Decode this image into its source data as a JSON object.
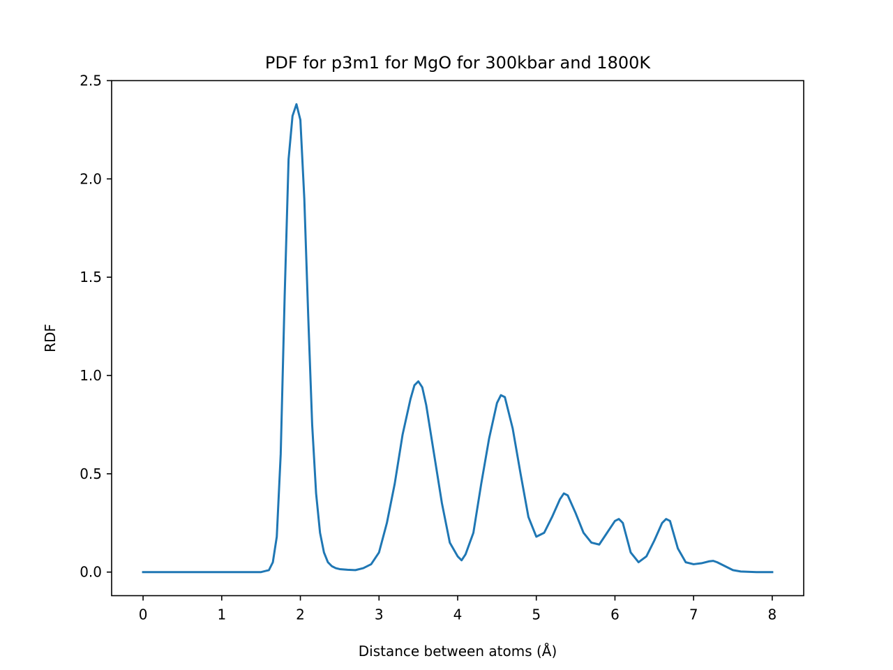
{
  "chart_data": {
    "type": "line",
    "title": "PDF for p3m1 for MgO for 300kbar and 1800K",
    "xlabel": "Distance between atoms (Å)",
    "ylabel": "RDF",
    "xlim": [
      -0.4,
      8.4
    ],
    "ylim": [
      -0.12,
      2.5
    ],
    "xticks": [
      0,
      1,
      2,
      3,
      4,
      5,
      6,
      7,
      8
    ],
    "xtick_labels": [
      "0",
      "1",
      "2",
      "3",
      "4",
      "5",
      "6",
      "7",
      "8"
    ],
    "yticks": [
      0.0,
      0.5,
      1.0,
      1.5,
      2.0,
      2.5
    ],
    "ytick_labels": [
      "0.0",
      "0.5",
      "1.0",
      "1.5",
      "2.0",
      "2.5"
    ],
    "grid": false,
    "series": [
      {
        "color": "#1f77b4",
        "x": [
          0.0,
          0.5,
          1.0,
          1.5,
          1.6,
          1.65,
          1.7,
          1.75,
          1.8,
          1.85,
          1.9,
          1.95,
          2.0,
          2.05,
          2.1,
          2.15,
          2.2,
          2.25,
          2.3,
          2.35,
          2.4,
          2.45,
          2.5,
          2.6,
          2.7,
          2.8,
          2.9,
          3.0,
          3.1,
          3.2,
          3.3,
          3.4,
          3.45,
          3.5,
          3.55,
          3.6,
          3.7,
          3.8,
          3.9,
          4.0,
          4.05,
          4.1,
          4.2,
          4.3,
          4.4,
          4.5,
          4.55,
          4.6,
          4.7,
          4.8,
          4.9,
          5.0,
          5.1,
          5.2,
          5.3,
          5.35,
          5.4,
          5.5,
          5.6,
          5.7,
          5.8,
          5.9,
          6.0,
          6.05,
          6.1,
          6.2,
          6.3,
          6.4,
          6.5,
          6.6,
          6.65,
          6.7,
          6.8,
          6.9,
          7.0,
          7.1,
          7.2,
          7.25,
          7.3,
          7.4,
          7.5,
          7.6,
          7.8,
          8.0
        ],
        "y": [
          0.0,
          0.0,
          0.0,
          0.0,
          0.01,
          0.05,
          0.18,
          0.6,
          1.4,
          2.1,
          2.32,
          2.38,
          2.3,
          1.9,
          1.3,
          0.75,
          0.4,
          0.2,
          0.1,
          0.05,
          0.03,
          0.02,
          0.015,
          0.012,
          0.01,
          0.02,
          0.04,
          0.1,
          0.25,
          0.45,
          0.7,
          0.88,
          0.95,
          0.97,
          0.94,
          0.85,
          0.6,
          0.35,
          0.15,
          0.08,
          0.06,
          0.09,
          0.2,
          0.45,
          0.68,
          0.86,
          0.9,
          0.89,
          0.73,
          0.5,
          0.28,
          0.18,
          0.2,
          0.28,
          0.37,
          0.4,
          0.39,
          0.3,
          0.2,
          0.15,
          0.14,
          0.2,
          0.26,
          0.27,
          0.25,
          0.1,
          0.05,
          0.08,
          0.16,
          0.25,
          0.27,
          0.26,
          0.12,
          0.05,
          0.04,
          0.045,
          0.055,
          0.057,
          0.05,
          0.03,
          0.01,
          0.003,
          0.0,
          0.0
        ]
      }
    ]
  }
}
